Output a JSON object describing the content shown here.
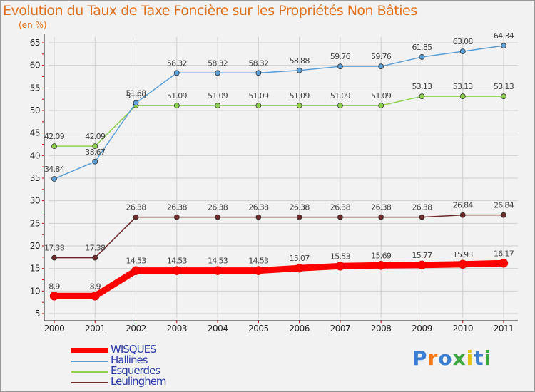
{
  "title": "Evolution du Taux de Taxe Foncière sur les Propriétés Non Bâties",
  "unit_label": "(en %)",
  "chart_data": {
    "type": "line",
    "title": "Evolution du Taux de Taxe Foncière sur les Propriétés Non Bâties",
    "ylabel": "(en %)",
    "xlabel": "",
    "ylim": [
      5,
      65
    ],
    "yticks": [
      5,
      10,
      15,
      20,
      25,
      30,
      35,
      40,
      45,
      50,
      55,
      60,
      65
    ],
    "grid": true,
    "categories": [
      "2000",
      "2001",
      "2002",
      "2003",
      "2004",
      "2005",
      "2006",
      "2007",
      "2008",
      "2009",
      "2010",
      "2011"
    ],
    "series": [
      {
        "name": "Leulinghem",
        "color": "#6e2a2a",
        "labels": [
          "17.38",
          "17.38",
          "26.38",
          "26.38",
          "26.38",
          "26.38",
          "26.38",
          "26.38",
          "26.38",
          "26.38",
          "26.84",
          "26.84"
        ],
        "values": [
          17.38,
          17.38,
          26.38,
          26.38,
          26.38,
          26.38,
          26.38,
          26.38,
          26.38,
          26.38,
          26.84,
          26.84
        ]
      },
      {
        "name": "Esquerdes",
        "color": "#8fd14f",
        "labels": [
          "42.09",
          "42.09",
          "51.09",
          "51.09",
          "51.09",
          "51.09",
          "51.09",
          "51.09",
          "51.09",
          "53.13",
          "53.13",
          "53.13"
        ],
        "values": [
          42.09,
          42.09,
          51.09,
          51.09,
          51.09,
          51.09,
          51.09,
          51.09,
          51.09,
          53.13,
          53.13,
          53.13
        ]
      },
      {
        "name": "Hallines",
        "color": "#5a9ed6",
        "labels": [
          "34.84",
          "38.67",
          "51.68",
          "58.32",
          "58.32",
          "58.32",
          "58.88",
          "59.76",
          "59.76",
          "61.85",
          "63.08",
          "64.34"
        ],
        "values": [
          34.84,
          38.67,
          51.68,
          58.32,
          58.32,
          58.32,
          58.88,
          59.76,
          59.76,
          61.85,
          63.08,
          64.34
        ]
      },
      {
        "name": "WISQUES",
        "color": "#ff0000",
        "labels": [
          "8.9",
          "8.9",
          "14.53",
          "14.53",
          "14.53",
          "14.53",
          "15.07",
          "15.53",
          "15.69",
          "15.77",
          "15.93",
          "16.17"
        ],
        "values": [
          8.9,
          8.9,
          14.53,
          14.53,
          14.53,
          14.53,
          15.07,
          15.53,
          15.69,
          15.77,
          15.93,
          16.17
        ]
      }
    ]
  },
  "legend": {
    "items": [
      {
        "label": "WISQUES",
        "color": "#ff0000"
      },
      {
        "label": "Hallines",
        "color": "#5a9ed6"
      },
      {
        "label": "Esquerdes",
        "color": "#8fd14f"
      },
      {
        "label": "Leulinghem",
        "color": "#6e2a2a"
      }
    ]
  },
  "logo": {
    "text": "Proxiti"
  }
}
